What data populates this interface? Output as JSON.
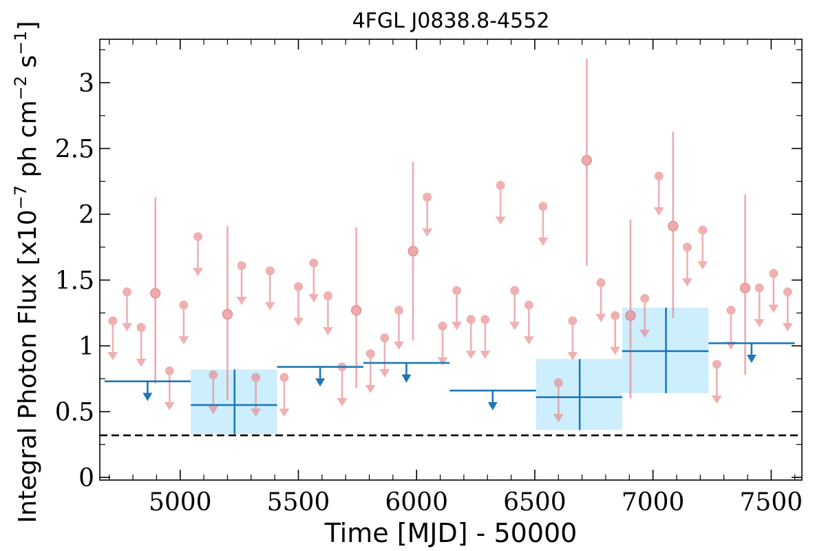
{
  "chart_data": {
    "type": "scatter",
    "title": "4FGL J0838.8-4552",
    "xlabel": "Time [MJD] - 50000",
    "ylabel": {
      "prefix": "Integral Photon Flux [x10",
      "exp1": "−7",
      "mid1": " ph cm",
      "exp2": "−2",
      "mid2": " s",
      "exp3": "−1",
      "suffix": "]"
    },
    "xlim": [
      4660,
      7630
    ],
    "ylim": [
      -0.02,
      3.33
    ],
    "xticks": [
      5000,
      5500,
      6000,
      6500,
      7000,
      7500
    ],
    "xtick_labels": [
      "5000",
      "5500",
      "6000",
      "6500",
      "7000",
      "7500"
    ],
    "yticks": [
      0,
      0.5,
      1,
      1.5,
      2,
      2.5,
      3
    ],
    "ytick_labels": [
      "0",
      "0.5",
      "1",
      "1.5",
      "2",
      "2.5",
      "3"
    ],
    "reference_line": {
      "y": 0.32,
      "style": "dashed",
      "color": "#000000"
    },
    "colors": {
      "fine": "#e8878a",
      "coarse": "#1f77b4",
      "coarse_box": "#cdeefc"
    },
    "fine_detections": [
      {
        "x": 4895,
        "y": 1.4,
        "lo": 0.71,
        "hi": 2.13
      },
      {
        "x": 5200,
        "y": 1.24,
        "lo": 0.59,
        "hi": 1.91
      },
      {
        "x": 5745,
        "y": 1.27,
        "lo": 0.68,
        "hi": 1.9
      },
      {
        "x": 5985,
        "y": 1.72,
        "lo": 1.04,
        "hi": 2.4
      },
      {
        "x": 6720,
        "y": 2.41,
        "lo": 1.61,
        "hi": 3.18
      },
      {
        "x": 6905,
        "y": 1.23,
        "lo": 0.6,
        "hi": 1.96
      },
      {
        "x": 7085,
        "y": 1.91,
        "lo": 1.21,
        "hi": 2.63
      },
      {
        "x": 7390,
        "y": 1.44,
        "lo": 0.78,
        "hi": 2.15
      }
    ],
    "fine_upper_limits": [
      {
        "x": 4715,
        "y": 1.19
      },
      {
        "x": 4775,
        "y": 1.41
      },
      {
        "x": 4835,
        "y": 1.14
      },
      {
        "x": 4955,
        "y": 0.81
      },
      {
        "x": 5015,
        "y": 1.31
      },
      {
        "x": 5075,
        "y": 1.83
      },
      {
        "x": 5140,
        "y": 0.78
      },
      {
        "x": 5260,
        "y": 1.61
      },
      {
        "x": 5320,
        "y": 0.76
      },
      {
        "x": 5380,
        "y": 1.57
      },
      {
        "x": 5440,
        "y": 0.76
      },
      {
        "x": 5500,
        "y": 1.45
      },
      {
        "x": 5565,
        "y": 1.63
      },
      {
        "x": 5625,
        "y": 1.38
      },
      {
        "x": 5685,
        "y": 0.84
      },
      {
        "x": 5805,
        "y": 0.94
      },
      {
        "x": 5865,
        "y": 1.06
      },
      {
        "x": 5925,
        "y": 1.27
      },
      {
        "x": 6045,
        "y": 2.13
      },
      {
        "x": 6110,
        "y": 1.15
      },
      {
        "x": 6170,
        "y": 1.42
      },
      {
        "x": 6230,
        "y": 1.2
      },
      {
        "x": 6290,
        "y": 1.2
      },
      {
        "x": 6355,
        "y": 2.22
      },
      {
        "x": 6415,
        "y": 1.42
      },
      {
        "x": 6475,
        "y": 1.31
      },
      {
        "x": 6535,
        "y": 2.06
      },
      {
        "x": 6600,
        "y": 0.72
      },
      {
        "x": 6660,
        "y": 1.19
      },
      {
        "x": 6780,
        "y": 1.48
      },
      {
        "x": 6840,
        "y": 1.23
      },
      {
        "x": 6965,
        "y": 1.36
      },
      {
        "x": 7025,
        "y": 2.29
      },
      {
        "x": 7145,
        "y": 1.75
      },
      {
        "x": 7210,
        "y": 1.88
      },
      {
        "x": 7270,
        "y": 0.86
      },
      {
        "x": 7330,
        "y": 1.27
      },
      {
        "x": 7450,
        "y": 1.44
      },
      {
        "x": 7510,
        "y": 1.55
      },
      {
        "x": 7570,
        "y": 1.41
      }
    ],
    "coarse_detections": [
      {
        "x0": 5045,
        "x1": 5410,
        "xc": 5230,
        "y": 0.55,
        "lo": 0.33,
        "hi": 0.82
      },
      {
        "x0": 6505,
        "x1": 6870,
        "xc": 6690,
        "y": 0.61,
        "lo": 0.36,
        "hi": 0.9
      },
      {
        "x0": 6870,
        "x1": 7235,
        "xc": 7055,
        "y": 0.96,
        "lo": 0.64,
        "hi": 1.29
      }
    ],
    "coarse_upper_limits": [
      {
        "x0": 4680,
        "x1": 5045,
        "xc": 4862,
        "y": 0.73
      },
      {
        "x0": 5410,
        "x1": 5775,
        "xc": 5592,
        "y": 0.84
      },
      {
        "x0": 5775,
        "x1": 6140,
        "xc": 5957,
        "y": 0.87
      },
      {
        "x0": 6140,
        "x1": 6505,
        "xc": 6322,
        "y": 0.66
      },
      {
        "x0": 7235,
        "x1": 7600,
        "xc": 7417,
        "y": 1.02
      }
    ]
  }
}
